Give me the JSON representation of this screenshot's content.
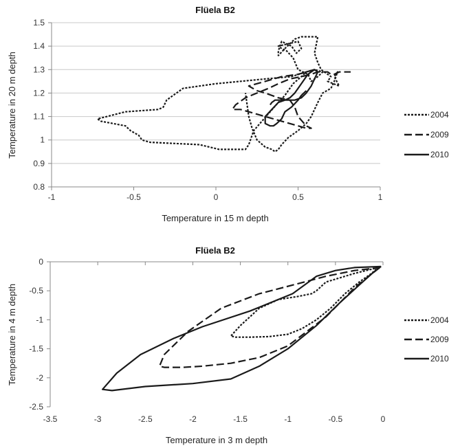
{
  "chart_data": [
    {
      "type": "line",
      "title": "Flüela B2",
      "xlabel": "Temperature in 15 m depth",
      "ylabel": "Temperature in 20 m depth",
      "xlim": [
        -1,
        1
      ],
      "ylim": [
        0.8,
        1.5
      ],
      "xticks": [
        -1,
        -0.5,
        0,
        0.5,
        1
      ],
      "xtick_labels": [
        "-1",
        "-0.5",
        "0",
        "0.5",
        "1"
      ],
      "yticks": [
        0.8,
        0.9,
        1,
        1.1,
        1.2,
        1.3,
        1.4,
        1.5
      ],
      "ytick_labels": [
        "0.8",
        "0.9",
        "1",
        "1.1",
        "1.2",
        "1.3",
        "1.4",
        "1.5"
      ],
      "grid": "horizontal",
      "legend_position": "right",
      "series": [
        {
          "name": "2004",
          "style": "dotted",
          "x": [
            0.55,
            0.46,
            0.3,
            0.0,
            -0.2,
            -0.3,
            -0.32,
            -0.35,
            -0.55,
            -0.72,
            -0.7,
            -0.55,
            -0.52,
            -0.47,
            -0.45,
            -0.4,
            -0.1,
            0.02,
            0.05,
            0.12,
            0.18,
            0.2,
            0.23,
            0.28,
            0.33,
            0.38,
            0.42,
            0.47,
            0.52,
            0.55,
            0.6,
            0.65,
            0.62,
            0.58,
            0.56,
            0.5,
            0.47,
            0.43,
            0.4,
            0.38,
            0.5,
            0.52,
            0.49,
            0.46,
            0.4,
            0.38,
            0.38,
            0.42,
            0.48,
            0.48,
            0.52,
            0.62,
            0.6,
            0.62,
            0.64,
            0.7,
            0.68,
            0.75,
            0.72,
            0.74,
            0.72,
            0.7,
            0.65,
            0.62,
            0.6,
            0.58,
            0.55,
            0.5,
            0.44,
            0.4,
            0.38,
            0.36,
            0.34,
            0.3,
            0.25,
            0.22,
            0.2,
            0.19,
            0.18
          ],
          "y": [
            1.29,
            1.27,
            1.26,
            1.24,
            1.22,
            1.17,
            1.14,
            1.13,
            1.12,
            1.09,
            1.08,
            1.06,
            1.04,
            1.02,
            1.0,
            0.99,
            0.98,
            0.96,
            0.96,
            0.96,
            0.96,
            0.98,
            1.04,
            1.08,
            1.12,
            1.16,
            1.19,
            1.24,
            1.27,
            1.29,
            1.3,
            1.29,
            1.27,
            1.25,
            1.28,
            1.3,
            1.35,
            1.38,
            1.39,
            1.4,
            1.42,
            1.39,
            1.37,
            1.4,
            1.42,
            1.38,
            1.36,
            1.39,
            1.43,
            1.43,
            1.44,
            1.44,
            1.37,
            1.33,
            1.3,
            1.27,
            1.25,
            1.23,
            1.27,
            1.29,
            1.25,
            1.22,
            1.2,
            1.16,
            1.13,
            1.1,
            1.07,
            1.04,
            1.01,
            0.98,
            0.96,
            0.95,
            0.96,
            0.97,
            1.0,
            1.05,
            1.1,
            1.15,
            1.2
          ]
        },
        {
          "name": "2009",
          "style": "dashed",
          "x": [
            0.6,
            0.5,
            0.4,
            0.3,
            0.2,
            0.25,
            0.3,
            0.38,
            0.45,
            0.48,
            0.5,
            0.55,
            0.58,
            0.58,
            0.55,
            0.5,
            0.45,
            0.4,
            0.35,
            0.3,
            0.25,
            0.2,
            0.15,
            0.1,
            0.12,
            0.18,
            0.25,
            0.32,
            0.38,
            0.45,
            0.52,
            0.58,
            0.62,
            0.65,
            0.68,
            0.7,
            0.72,
            0.75,
            0.8,
            0.82
          ],
          "y": [
            1.3,
            1.28,
            1.27,
            1.25,
            1.23,
            1.21,
            1.2,
            1.18,
            1.17,
            1.14,
            1.1,
            1.06,
            1.05,
            1.05,
            1.05,
            1.06,
            1.07,
            1.08,
            1.09,
            1.1,
            1.11,
            1.12,
            1.13,
            1.13,
            1.15,
            1.18,
            1.2,
            1.22,
            1.24,
            1.26,
            1.27,
            1.28,
            1.29,
            1.29,
            1.29,
            1.28,
            1.28,
            1.29,
            1.29,
            1.29
          ]
        },
        {
          "name": "2010",
          "style": "solid",
          "x": [
            0.55,
            0.52,
            0.5,
            0.46,
            0.42,
            0.4,
            0.37,
            0.35,
            0.33,
            0.3,
            0.3,
            0.34,
            0.38,
            0.42,
            0.45,
            0.48,
            0.5,
            0.52,
            0.54,
            0.56,
            0.58,
            0.6,
            0.62,
            0.6,
            0.58,
            0.55,
            0.52,
            0.48,
            0.44,
            0.4,
            0.36,
            0.34,
            0.33
          ],
          "y": [
            1.21,
            1.19,
            1.17,
            1.14,
            1.12,
            1.09,
            1.07,
            1.06,
            1.06,
            1.07,
            1.1,
            1.13,
            1.16,
            1.17,
            1.18,
            1.2,
            1.22,
            1.24,
            1.26,
            1.28,
            1.29,
            1.3,
            1.29,
            1.26,
            1.23,
            1.2,
            1.18,
            1.17,
            1.17,
            1.17,
            1.17,
            1.16,
            1.15
          ]
        }
      ]
    },
    {
      "type": "line",
      "title": "Flüela B2",
      "xlabel": "Temperature in 3 m depth",
      "ylabel": "Temperature in 4 m depth",
      "xlim": [
        -3.5,
        0
      ],
      "ylim": [
        -2.5,
        0
      ],
      "xticks": [
        -3.5,
        -3,
        -2.5,
        -2,
        -1.5,
        -1,
        -0.5,
        0
      ],
      "xtick_labels": [
        "-3.5",
        "-3",
        "-2.5",
        "-2",
        "-1.5",
        "-1",
        "-0.5",
        "0"
      ],
      "yticks": [
        -2.5,
        -2,
        -1.5,
        -1,
        -0.5,
        0
      ],
      "ytick_labels": [
        "-2.5",
        "-2",
        "-1.5",
        "-1",
        "-0.5",
        "0"
      ],
      "grid": "none",
      "legend_position": "right",
      "series": [
        {
          "name": "2004",
          "style": "dotted",
          "x": [
            -0.05,
            -0.3,
            -0.6,
            -0.7,
            -0.75,
            -0.9,
            -1.1,
            -1.3,
            -1.5,
            -1.6,
            -1.55,
            -1.4,
            -1.2,
            -1.0,
            -0.85,
            -0.7,
            -0.55,
            -0.4,
            -0.25,
            -0.12,
            -0.05
          ],
          "y": [
            -0.1,
            -0.2,
            -0.35,
            -0.5,
            -0.55,
            -0.6,
            -0.65,
            -0.8,
            -1.1,
            -1.28,
            -1.3,
            -1.3,
            -1.29,
            -1.25,
            -1.15,
            -1.0,
            -0.8,
            -0.55,
            -0.35,
            -0.2,
            -0.1
          ]
        },
        {
          "name": "2009",
          "style": "dashed",
          "x": [
            -0.03,
            -0.3,
            -0.6,
            -0.9,
            -1.3,
            -1.7,
            -2.05,
            -2.3,
            -2.35,
            -2.3,
            -2.1,
            -1.9,
            -1.6,
            -1.3,
            -1.0,
            -0.8,
            -0.6,
            -0.45,
            -0.3,
            -0.15,
            -0.05,
            -0.03
          ],
          "y": [
            -0.1,
            -0.15,
            -0.25,
            -0.38,
            -0.55,
            -0.8,
            -1.2,
            -1.6,
            -1.8,
            -1.82,
            -1.82,
            -1.8,
            -1.75,
            -1.65,
            -1.45,
            -1.2,
            -0.95,
            -0.7,
            -0.45,
            -0.25,
            -0.12,
            -0.1
          ]
        },
        {
          "name": "2010",
          "style": "solid",
          "x": [
            -0.02,
            -0.3,
            -0.5,
            -0.7,
            -0.95,
            -1.4,
            -1.9,
            -2.2,
            -2.55,
            -2.8,
            -2.95,
            -2.85,
            -2.5,
            -2.0,
            -1.6,
            -1.3,
            -1.0,
            -0.7,
            -0.45,
            -0.25,
            -0.1,
            -0.02
          ],
          "y": [
            -0.08,
            -0.1,
            -0.15,
            -0.25,
            -0.55,
            -0.85,
            -1.12,
            -1.32,
            -1.6,
            -1.92,
            -2.2,
            -2.22,
            -2.15,
            -2.1,
            -2.02,
            -1.8,
            -1.5,
            -1.1,
            -0.7,
            -0.4,
            -0.18,
            -0.08
          ]
        }
      ]
    }
  ]
}
